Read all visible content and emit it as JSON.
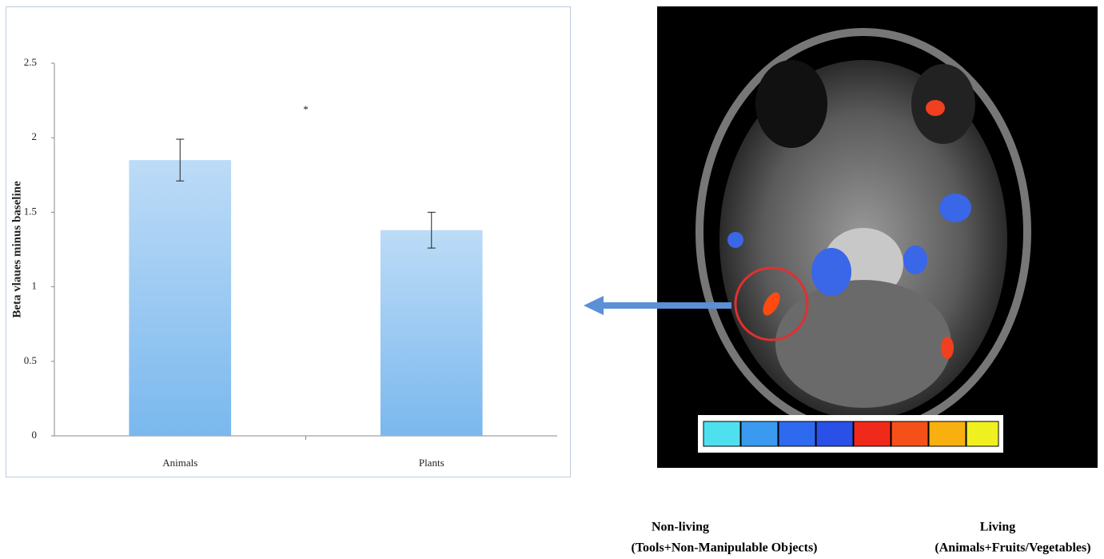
{
  "chart_data": {
    "type": "bar",
    "y_label": "Beta vlaues minus baseline",
    "categories": [
      "Animals",
      "Plants"
    ],
    "values": [
      1.85,
      1.38
    ],
    "errors": [
      0.14,
      0.12
    ],
    "color": "#7ab8ee",
    "annotation": "*",
    "ylim": [
      0,
      2.5
    ],
    "yticks": [
      0,
      0.5,
      1,
      1.5,
      2,
      2.5
    ]
  },
  "legend": {
    "left_label": "Non-living",
    "right_label": "Living",
    "left_detail": "(Tools+Non-Manipulable Objects)",
    "right_detail": "(Animals+Fruits/Vegetables)"
  }
}
